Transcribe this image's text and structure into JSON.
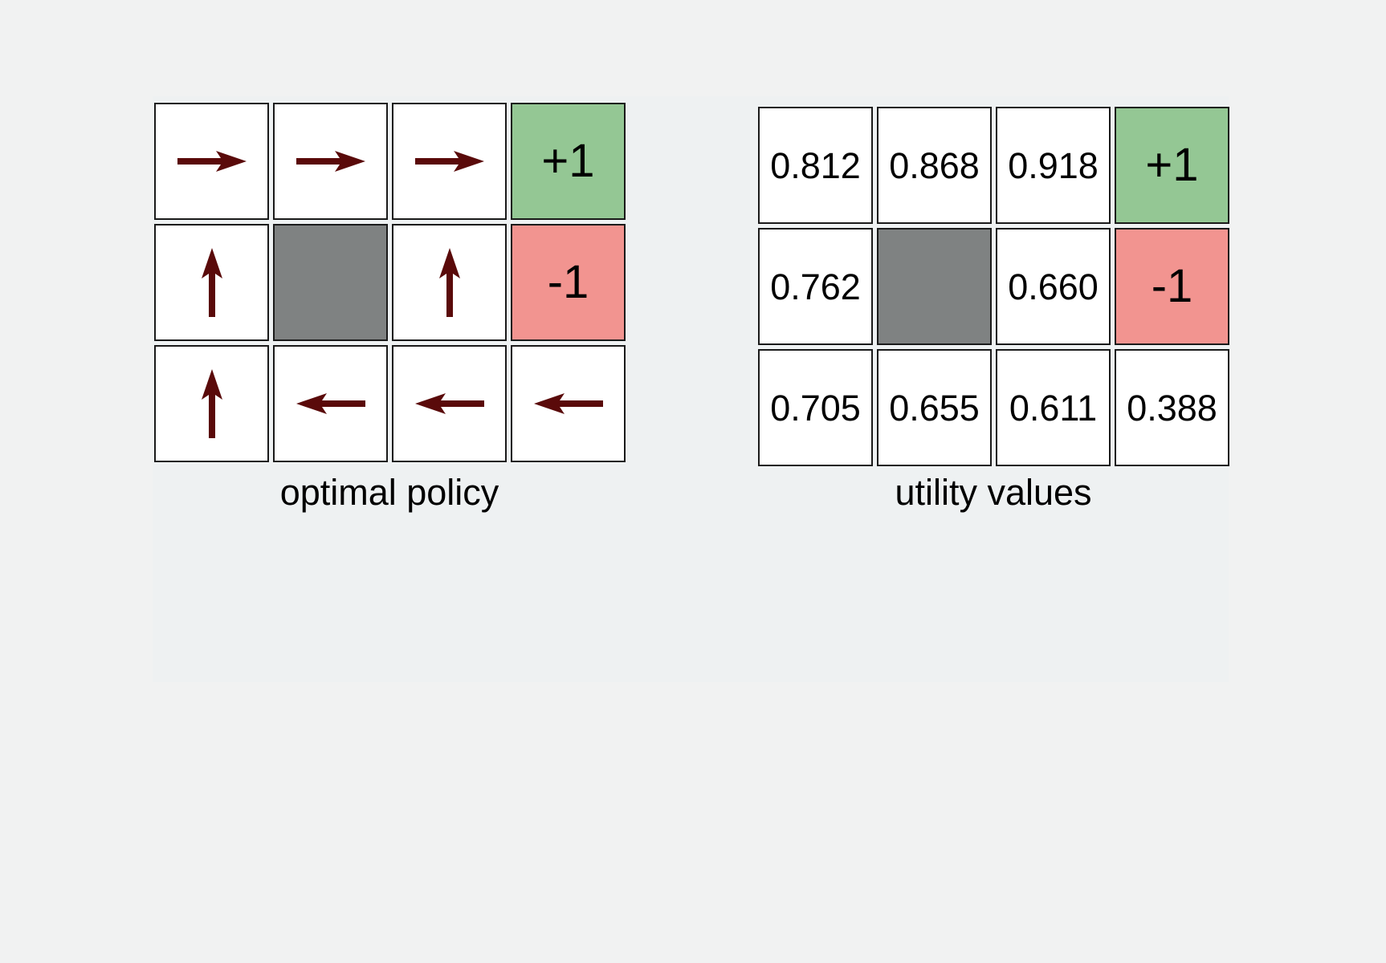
{
  "policy_figure": {
    "caption": "optimal policy",
    "terminal_plus": "+1",
    "terminal_minus": "-1",
    "arrow_color": "#5a0a0a",
    "rows": [
      [
        "right",
        "right",
        "right",
        "plus"
      ],
      [
        "up",
        "wall",
        "up",
        "minus"
      ],
      [
        "up",
        "left",
        "left",
        "left"
      ]
    ]
  },
  "utility_figure": {
    "caption": "utility values",
    "terminal_plus": "+1",
    "terminal_minus": "-1",
    "rows": [
      [
        "0.812",
        "0.868",
        "0.918",
        "+1"
      ],
      [
        "0.762",
        "",
        "0.660",
        "-1"
      ],
      [
        "0.705",
        "0.655",
        "0.611",
        "0.388"
      ]
    ]
  },
  "colors": {
    "terminal_plus": "#94c794",
    "terminal_minus": "#f29490",
    "wall": "#7f8282",
    "background": "#f1f2f2"
  }
}
